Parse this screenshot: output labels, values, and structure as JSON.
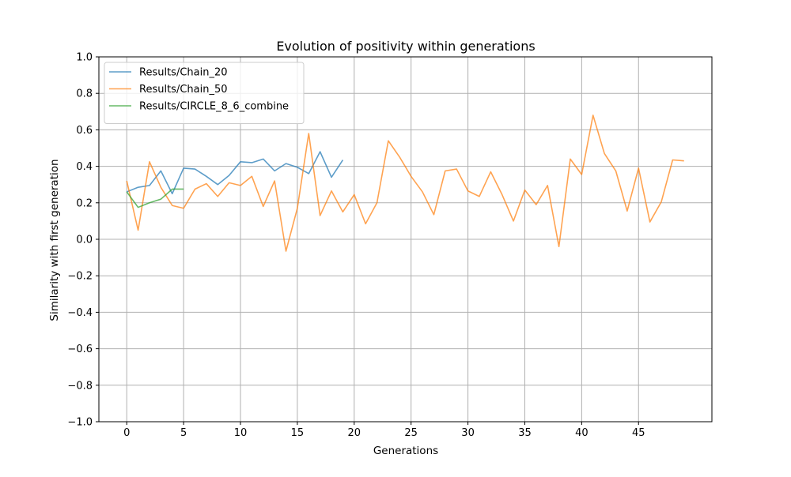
{
  "chart_data": {
    "type": "line",
    "title": "Evolution of positivity within generations",
    "xlabel": "Generations",
    "ylabel": "Similarity with first generation",
    "xlim": [
      -2.45,
      51.45
    ],
    "ylim": [
      -1.0,
      1.0
    ],
    "xticks": [
      0,
      5,
      10,
      15,
      20,
      25,
      30,
      35,
      40,
      45
    ],
    "yticks": [
      -1.0,
      -0.8,
      -0.6,
      -0.4,
      -0.2,
      0.0,
      0.2,
      0.4,
      0.6,
      0.8,
      1.0
    ],
    "grid": true,
    "legend_position": "top-left",
    "series": [
      {
        "name": "Results/Chain_20",
        "color": "#1f77b4",
        "x": [
          0,
          1,
          2,
          3,
          4,
          5,
          6,
          7,
          8,
          9,
          10,
          11,
          12,
          13,
          14,
          15,
          16,
          17,
          18,
          19
        ],
        "values": [
          0.26,
          0.285,
          0.295,
          0.375,
          0.25,
          0.39,
          0.385,
          0.345,
          0.3,
          0.35,
          0.425,
          0.42,
          0.44,
          0.375,
          0.415,
          0.395,
          0.36,
          0.48,
          0.34,
          0.435
        ]
      },
      {
        "name": "Results/Chain_50",
        "color": "#ff7f0e",
        "x": [
          0,
          1,
          2,
          3,
          4,
          5,
          6,
          7,
          8,
          9,
          10,
          11,
          12,
          13,
          14,
          15,
          16,
          17,
          18,
          19,
          20,
          21,
          22,
          23,
          24,
          25,
          26,
          27,
          28,
          29,
          30,
          31,
          32,
          33,
          34,
          35,
          36,
          37,
          38,
          39,
          40,
          41,
          42,
          43,
          44,
          45,
          46,
          47,
          48,
          49
        ],
        "values": [
          0.32,
          0.05,
          0.425,
          0.285,
          0.185,
          0.17,
          0.275,
          0.305,
          0.235,
          0.31,
          0.295,
          0.345,
          0.18,
          0.32,
          -0.065,
          0.17,
          0.58,
          0.13,
          0.265,
          0.15,
          0.245,
          0.085,
          0.2,
          0.54,
          0.45,
          0.345,
          0.26,
          0.135,
          0.375,
          0.385,
          0.265,
          0.235,
          0.37,
          0.245,
          0.1,
          0.27,
          0.19,
          0.295,
          -0.04,
          0.44,
          0.355,
          0.68,
          0.47,
          0.375,
          0.155,
          0.39,
          0.095,
          0.205,
          0.435,
          0.43
        ]
      },
      {
        "name": "Results/CIRCLE_8_6_combine",
        "color": "#2ca02c",
        "x": [
          0,
          1,
          2,
          3,
          4,
          5
        ],
        "values": [
          0.26,
          0.175,
          0.2,
          0.22,
          0.275,
          0.275
        ]
      }
    ]
  }
}
